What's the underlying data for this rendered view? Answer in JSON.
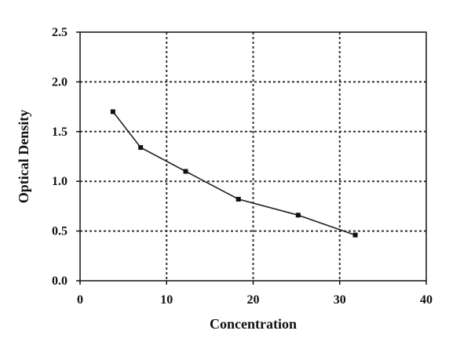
{
  "chart_data": {
    "type": "line",
    "title": "",
    "xlabel": "Concentration",
    "ylabel": "Optical Density",
    "xlim": [
      0,
      40
    ],
    "ylim": [
      0,
      2.5
    ],
    "x_ticks": [
      0,
      10,
      20,
      30,
      40
    ],
    "x_tick_labels": [
      "0",
      "10",
      "20",
      "30",
      "40"
    ],
    "y_ticks": [
      0,
      0.5,
      1,
      1.5,
      2,
      2.5
    ],
    "y_tick_labels": [
      "0.0",
      "0.5",
      "1.0",
      "1.5",
      "2.0",
      "2.5"
    ],
    "grid": "dashed",
    "legend": "none",
    "series": [
      {
        "x": [
          3.8,
          7.0,
          12.2,
          18.3,
          25.2,
          31.8
        ],
        "y": [
          1.7,
          1.34,
          1.1,
          0.82,
          0.66,
          0.46
        ]
      }
    ]
  },
  "colors": {
    "line": "#222222",
    "marker": "#111111",
    "axis": "#111111",
    "grid": "#333333",
    "background": "#ffffff"
  }
}
